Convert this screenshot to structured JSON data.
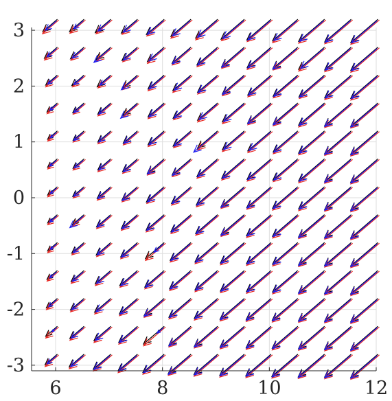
{
  "chart_data": {
    "type": "quiver",
    "title": "",
    "xlabel": "",
    "ylabel": "",
    "xlim": [
      5.55,
      12
    ],
    "ylim": [
      -3.1,
      3.05
    ],
    "xticks": [
      6,
      8,
      10,
      12
    ],
    "yticks": [
      -3,
      -2,
      -1,
      0,
      1,
      2,
      3
    ],
    "xtick_labels": [
      "6",
      "8",
      "10",
      "12"
    ],
    "ytick_labels": [
      "-3",
      "-2",
      "-1",
      "0",
      "1",
      "2",
      "3"
    ],
    "grid": true,
    "legend": "none",
    "grid_x": [
      5.75,
      6.25,
      6.75,
      7.25,
      7.75,
      8.25,
      8.75,
      9.25,
      9.75,
      10.25,
      10.75,
      11.25,
      11.75
    ],
    "grid_y": [
      3.0,
      2.5,
      2.0,
      1.5,
      1.0,
      0.5,
      0.0,
      -0.5,
      -1.0,
      -1.5,
      -2.0,
      -2.5,
      -3.0
    ],
    "arrow_direction": [
      -0.76,
      -0.65
    ],
    "series": [
      {
        "color": "#000000",
        "magnitude": [
          [
            0.45,
            0.45,
            0.48,
            0.5,
            0.55,
            0.62,
            0.68,
            0.72,
            0.75,
            0.78,
            0.8,
            0.82,
            0.84
          ],
          [
            0.4,
            0.42,
            0.45,
            0.48,
            0.52,
            0.58,
            0.64,
            0.7,
            0.74,
            0.77,
            0.8,
            0.82,
            0.84
          ],
          [
            0.36,
            0.38,
            0.42,
            0.46,
            0.5,
            0.56,
            0.62,
            0.68,
            0.72,
            0.76,
            0.79,
            0.82,
            0.84
          ],
          [
            0.32,
            0.35,
            0.4,
            0.45,
            0.5,
            0.55,
            0.62,
            0.68,
            0.72,
            0.76,
            0.8,
            0.82,
            0.84
          ],
          [
            0.3,
            0.34,
            0.4,
            0.44,
            0.5,
            0.55,
            0.62,
            0.68,
            0.72,
            0.76,
            0.8,
            0.82,
            0.84
          ],
          [
            0.3,
            0.34,
            0.4,
            0.46,
            0.52,
            0.58,
            0.64,
            0.7,
            0.74,
            0.77,
            0.8,
            0.82,
            0.84
          ],
          [
            0.3,
            0.35,
            0.42,
            0.48,
            0.55,
            0.6,
            0.66,
            0.72,
            0.75,
            0.78,
            0.8,
            0.82,
            0.84
          ],
          [
            0.3,
            0.36,
            0.44,
            0.5,
            0.56,
            0.62,
            0.68,
            0.72,
            0.76,
            0.78,
            0.8,
            0.82,
            0.84
          ],
          [
            0.3,
            0.38,
            0.45,
            0.52,
            0.58,
            0.64,
            0.7,
            0.74,
            0.76,
            0.78,
            0.8,
            0.82,
            0.84
          ],
          [
            0.32,
            0.4,
            0.48,
            0.55,
            0.6,
            0.66,
            0.7,
            0.74,
            0.76,
            0.78,
            0.8,
            0.82,
            0.84
          ],
          [
            0.34,
            0.42,
            0.5,
            0.56,
            0.62,
            0.68,
            0.72,
            0.75,
            0.77,
            0.79,
            0.8,
            0.82,
            0.84
          ],
          [
            0.36,
            0.44,
            0.52,
            0.58,
            0.64,
            0.68,
            0.72,
            0.75,
            0.77,
            0.79,
            0.8,
            0.82,
            0.84
          ],
          [
            0.38,
            0.46,
            0.54,
            0.6,
            0.66,
            0.7,
            0.73,
            0.76,
            0.78,
            0.8,
            0.81,
            0.82,
            0.84
          ]
        ]
      },
      {
        "color": "#e8251f",
        "magnitude": [
          [
            0.5,
            0.48,
            0.5,
            0.52,
            0.58,
            0.66,
            0.72,
            0.75,
            0.78,
            0.82,
            0.84,
            0.86,
            0.88
          ],
          [
            0.44,
            0.45,
            0.48,
            0.5,
            0.56,
            0.62,
            0.68,
            0.74,
            0.78,
            0.8,
            0.84,
            0.86,
            0.88
          ],
          [
            0.4,
            0.4,
            0.44,
            0.5,
            0.54,
            0.6,
            0.66,
            0.72,
            0.76,
            0.8,
            0.82,
            0.86,
            0.88
          ],
          [
            0.36,
            0.38,
            0.44,
            0.48,
            0.54,
            0.58,
            0.66,
            0.72,
            0.76,
            0.8,
            0.84,
            0.86,
            0.88
          ],
          [
            0.34,
            0.38,
            0.44,
            0.48,
            0.54,
            0.58,
            0.66,
            0.72,
            0.76,
            0.8,
            0.84,
            0.86,
            0.88
          ],
          [
            0.34,
            0.38,
            0.44,
            0.5,
            0.56,
            0.62,
            0.68,
            0.74,
            0.78,
            0.8,
            0.84,
            0.86,
            0.88
          ],
          [
            0.34,
            0.38,
            0.46,
            0.52,
            0.58,
            0.64,
            0.7,
            0.76,
            0.79,
            0.82,
            0.84,
            0.86,
            0.88
          ],
          [
            0.34,
            0.4,
            0.48,
            0.54,
            0.6,
            0.66,
            0.72,
            0.76,
            0.8,
            0.82,
            0.84,
            0.86,
            0.88
          ],
          [
            0.34,
            0.42,
            0.48,
            0.56,
            0.62,
            0.68,
            0.74,
            0.78,
            0.8,
            0.82,
            0.84,
            0.86,
            0.88
          ],
          [
            0.36,
            0.44,
            0.52,
            0.58,
            0.64,
            0.7,
            0.74,
            0.78,
            0.8,
            0.82,
            0.84,
            0.86,
            0.88
          ],
          [
            0.38,
            0.46,
            0.54,
            0.6,
            0.66,
            0.72,
            0.76,
            0.79,
            0.81,
            0.83,
            0.84,
            0.86,
            0.88
          ],
          [
            0.4,
            0.48,
            0.56,
            0.62,
            0.68,
            0.72,
            0.76,
            0.79,
            0.81,
            0.83,
            0.84,
            0.86,
            0.88
          ],
          [
            0.42,
            0.5,
            0.58,
            0.64,
            0.7,
            0.74,
            0.77,
            0.8,
            0.82,
            0.84,
            0.85,
            0.86,
            0.88
          ]
        ]
      },
      {
        "color": "#1f1ff0",
        "magnitude": [
          [
            0.35,
            0.3,
            0.38,
            0.42,
            0.5,
            0.55,
            0.6,
            0.65,
            0.7,
            0.72,
            0.75,
            0.78,
            0.8
          ],
          [
            0.3,
            0.35,
            0.5,
            0.42,
            0.45,
            0.55,
            0.6,
            0.68,
            0.7,
            0.75,
            0.72,
            0.78,
            0.8
          ],
          [
            0.28,
            0.3,
            0.32,
            0.48,
            0.45,
            0.5,
            0.58,
            0.65,
            0.68,
            0.72,
            0.75,
            0.78,
            0.8
          ],
          [
            0.22,
            0.3,
            0.35,
            0.5,
            0.45,
            0.5,
            0.55,
            0.62,
            0.7,
            0.74,
            0.76,
            0.8,
            0.82
          ],
          [
            0.2,
            0.3,
            0.35,
            0.4,
            0.45,
            0.5,
            0.72,
            0.62,
            0.66,
            0.72,
            0.76,
            0.8,
            0.82
          ],
          [
            0.22,
            0.28,
            0.35,
            0.42,
            0.5,
            0.55,
            0.6,
            0.66,
            0.7,
            0.72,
            0.76,
            0.8,
            0.82
          ],
          [
            0.2,
            0.3,
            0.38,
            0.45,
            0.5,
            0.56,
            0.62,
            0.7,
            0.72,
            0.74,
            0.76,
            0.8,
            0.82
          ],
          [
            0.22,
            0.42,
            0.4,
            0.46,
            0.52,
            0.58,
            0.64,
            0.7,
            0.72,
            0.74,
            0.78,
            0.8,
            0.82
          ],
          [
            0.2,
            0.32,
            0.4,
            0.48,
            0.3,
            0.6,
            0.66,
            0.7,
            0.72,
            0.74,
            0.78,
            0.8,
            0.82
          ],
          [
            0.22,
            0.34,
            0.42,
            0.5,
            0.56,
            0.62,
            0.66,
            0.7,
            0.72,
            0.74,
            0.78,
            0.8,
            0.82
          ],
          [
            0.25,
            0.36,
            0.44,
            0.52,
            0.6,
            0.64,
            0.68,
            0.72,
            0.74,
            0.76,
            0.78,
            0.8,
            0.82
          ],
          [
            0.15,
            0.38,
            0.46,
            0.54,
            0.2,
            0.66,
            0.7,
            0.72,
            0.74,
            0.76,
            0.78,
            0.8,
            0.82
          ],
          [
            0.3,
            0.4,
            0.5,
            0.56,
            0.62,
            0.68,
            0.7,
            0.73,
            0.75,
            0.77,
            0.79,
            0.8,
            0.82
          ]
        ]
      }
    ]
  }
}
